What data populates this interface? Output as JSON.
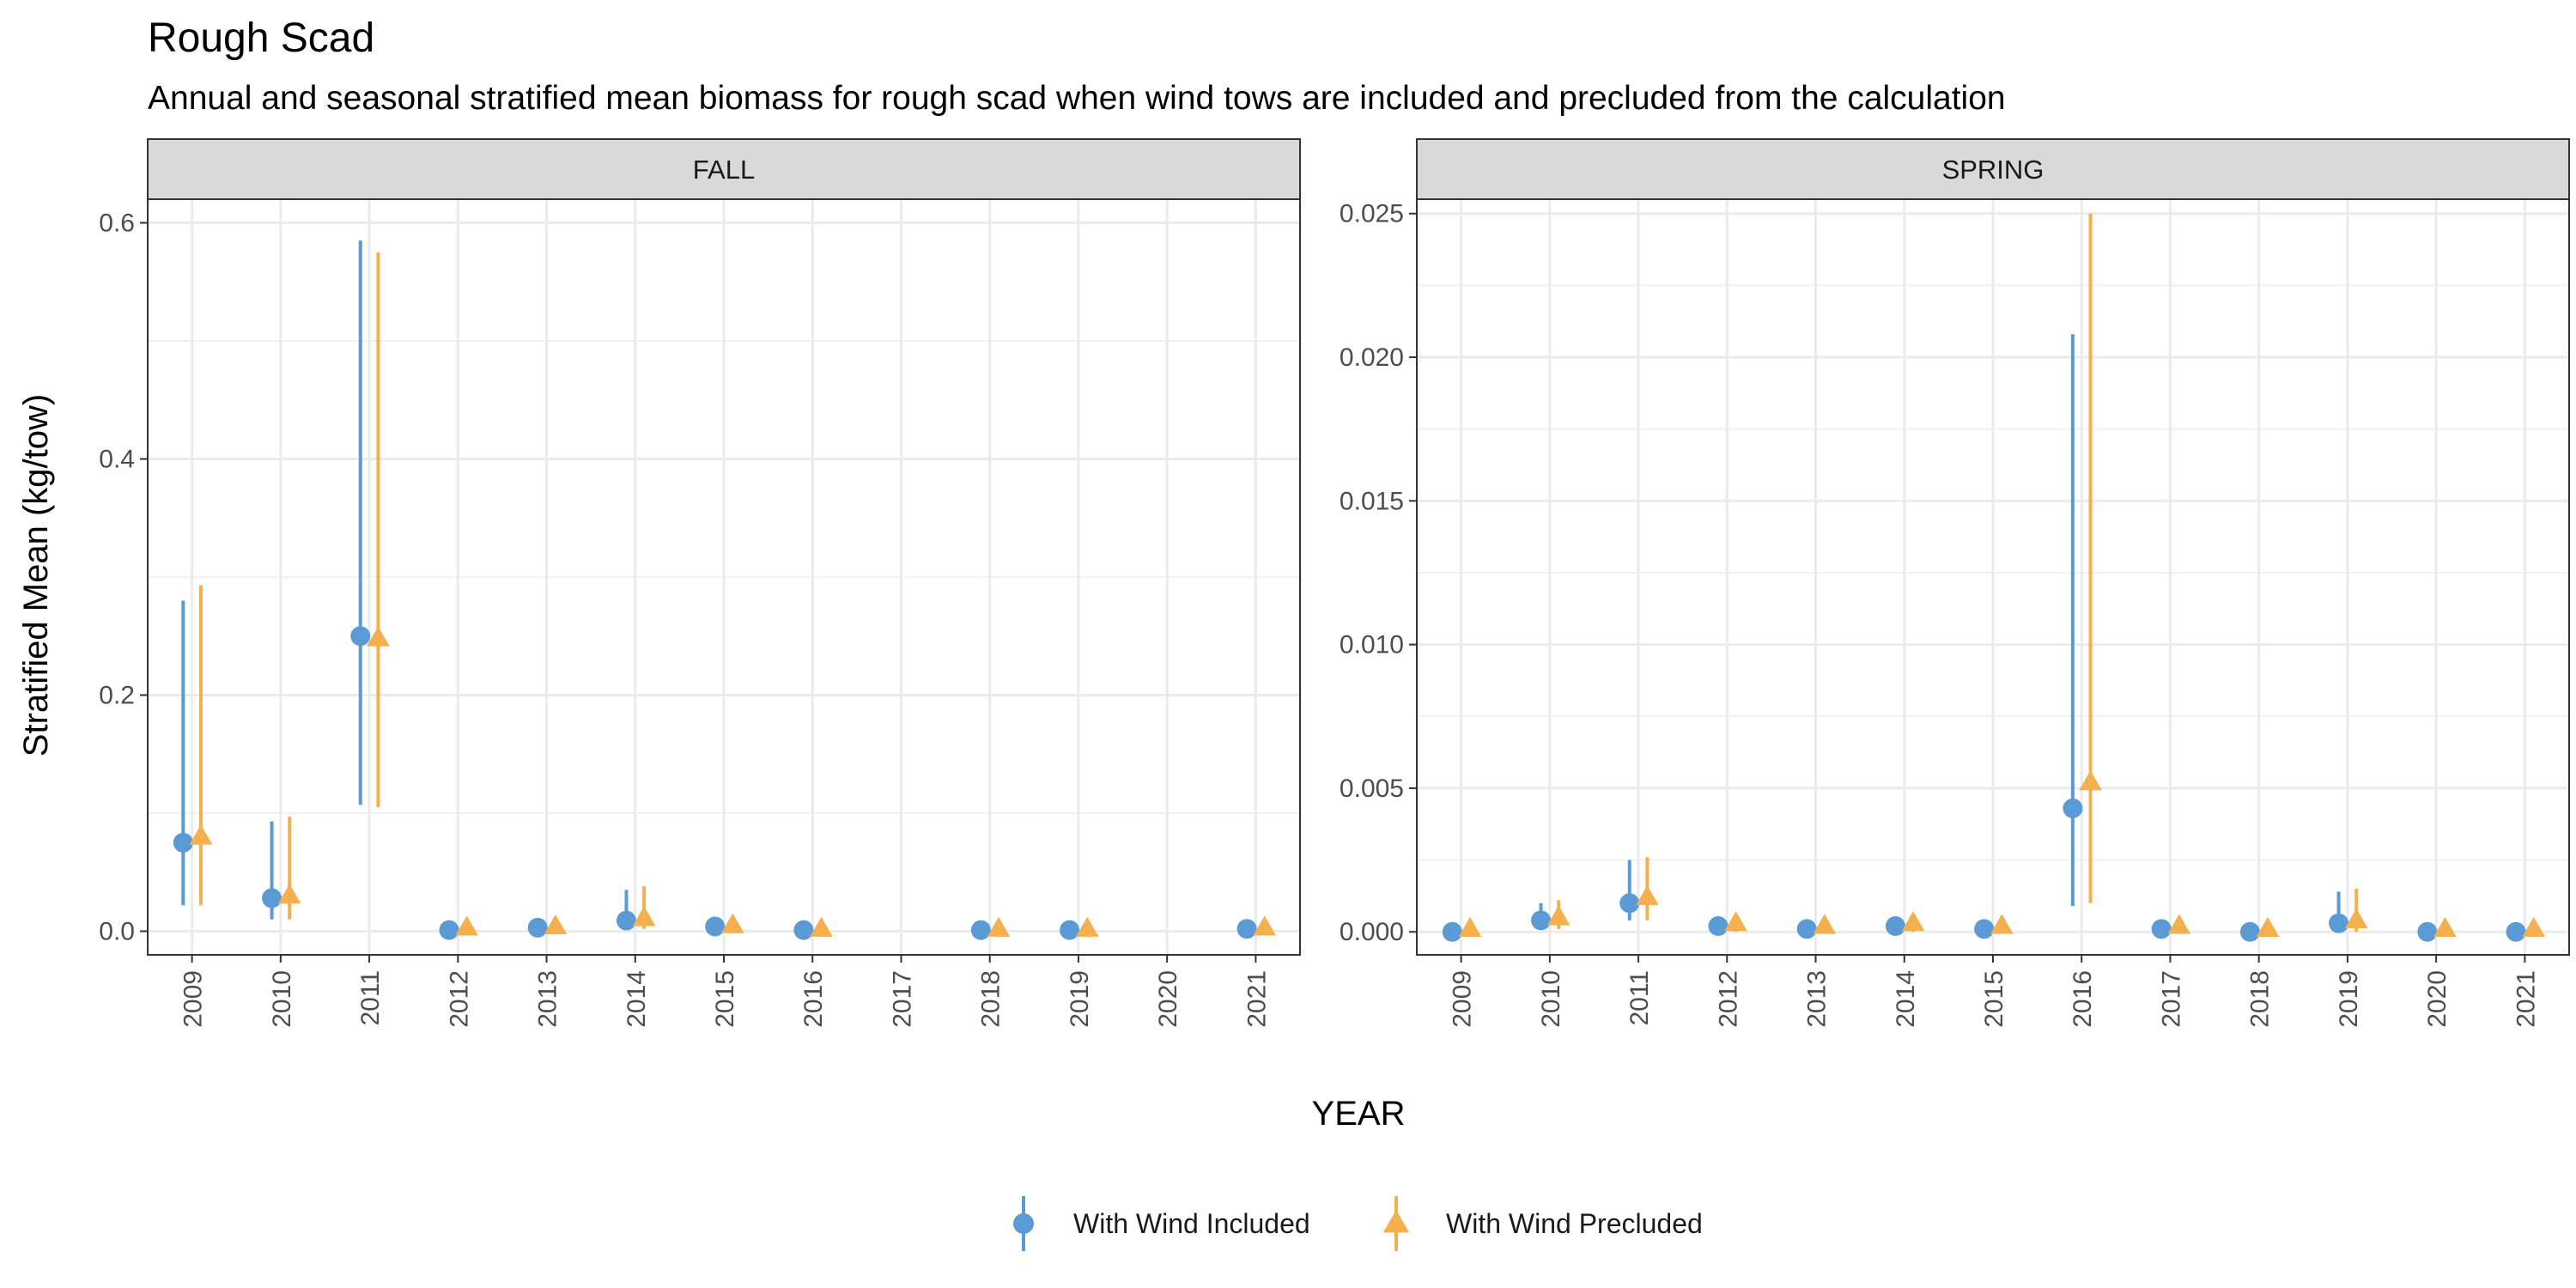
{
  "title": "Rough Scad",
  "subtitle": "Annual and seasonal stratified mean biomass for rough scad when wind tows are included and precluded from the calculation",
  "colors": {
    "included": "#5B9BD5",
    "precluded": "#F4B04F"
  },
  "chart_data": {
    "type": "scatter",
    "xlabel": "YEAR",
    "ylabel": "Stratified Mean (kg/tow)",
    "categories": [
      "2009",
      "2010",
      "2011",
      "2012",
      "2013",
      "2014",
      "2015",
      "2016",
      "2017",
      "2018",
      "2019",
      "2020",
      "2021"
    ],
    "legend_position": "bottom",
    "grid": true,
    "series_names": [
      "With Wind Included",
      "With Wind Precluded"
    ],
    "panels": [
      {
        "strip": "FALL",
        "ylim": [
          -0.02,
          0.62
        ],
        "yticks": [
          0.0,
          0.2,
          0.4,
          0.6
        ],
        "ytick_labels": [
          "0.0",
          "0.2",
          "0.4",
          "0.6"
        ],
        "series": [
          {
            "name": "With Wind Included",
            "points": [
              {
                "x": "2009",
                "y": 0.075,
                "lo": 0.022,
                "hi": 0.28
              },
              {
                "x": "2010",
                "y": 0.028,
                "lo": 0.01,
                "hi": 0.093
              },
              {
                "x": "2011",
                "y": 0.25,
                "lo": 0.107,
                "hi": 0.585
              },
              {
                "x": "2012",
                "y": 0.001,
                "lo": 0.0,
                "hi": 0.003
              },
              {
                "x": "2013",
                "y": 0.003,
                "lo": 0.001,
                "hi": 0.006
              },
              {
                "x": "2014",
                "y": 0.009,
                "lo": 0.002,
                "hi": 0.035
              },
              {
                "x": "2015",
                "y": 0.004,
                "lo": 0.001,
                "hi": 0.008
              },
              {
                "x": "2016",
                "y": 0.001,
                "lo": 0.0,
                "hi": 0.002
              },
              {
                "x": "2018",
                "y": 0.001,
                "lo": 0.0,
                "hi": 0.002
              },
              {
                "x": "2019",
                "y": 0.001,
                "lo": 0.0,
                "hi": 0.002
              },
              {
                "x": "2021",
                "y": 0.002,
                "lo": 0.0,
                "hi": 0.004
              }
            ]
          },
          {
            "name": "With Wind Precluded",
            "points": [
              {
                "x": "2009",
                "y": 0.08,
                "lo": 0.022,
                "hi": 0.293
              },
              {
                "x": "2010",
                "y": 0.03,
                "lo": 0.01,
                "hi": 0.097
              },
              {
                "x": "2011",
                "y": 0.248,
                "lo": 0.105,
                "hi": 0.575
              },
              {
                "x": "2012",
                "y": 0.003,
                "lo": 0.0,
                "hi": 0.005
              },
              {
                "x": "2013",
                "y": 0.004,
                "lo": 0.001,
                "hi": 0.007
              },
              {
                "x": "2014",
                "y": 0.011,
                "lo": 0.002,
                "hi": 0.038
              },
              {
                "x": "2015",
                "y": 0.005,
                "lo": 0.001,
                "hi": 0.009
              },
              {
                "x": "2016",
                "y": 0.002,
                "lo": 0.0,
                "hi": 0.004
              },
              {
                "x": "2018",
                "y": 0.002,
                "lo": 0.0,
                "hi": 0.004
              },
              {
                "x": "2019",
                "y": 0.002,
                "lo": 0.0,
                "hi": 0.004
              },
              {
                "x": "2021",
                "y": 0.003,
                "lo": 0.0,
                "hi": 0.005
              }
            ]
          }
        ]
      },
      {
        "strip": "SPRING",
        "ylim": [
          -0.0008,
          0.0255
        ],
        "yticks": [
          0.0,
          0.005,
          0.01,
          0.015,
          0.02,
          0.025
        ],
        "ytick_labels": [
          "0.000",
          "0.005",
          "0.010",
          "0.015",
          "0.020",
          "0.025"
        ],
        "series": [
          {
            "name": "With Wind Included",
            "points": [
              {
                "x": "2009",
                "y": 0.0,
                "lo": 0.0,
                "hi": 0.0001
              },
              {
                "x": "2010",
                "y": 0.0004,
                "lo": 0.0001,
                "hi": 0.001
              },
              {
                "x": "2011",
                "y": 0.001,
                "lo": 0.0004,
                "hi": 0.0025
              },
              {
                "x": "2012",
                "y": 0.0002,
                "lo": 0.0,
                "hi": 0.0004
              },
              {
                "x": "2013",
                "y": 0.0001,
                "lo": 0.0,
                "hi": 0.0002
              },
              {
                "x": "2014",
                "y": 0.0002,
                "lo": 0.0,
                "hi": 0.0003
              },
              {
                "x": "2015",
                "y": 0.0001,
                "lo": 0.0,
                "hi": 0.0002
              },
              {
                "x": "2016",
                "y": 0.0043,
                "lo": 0.0009,
                "hi": 0.0208
              },
              {
                "x": "2017",
                "y": 0.0001,
                "lo": 0.0,
                "hi": 0.0002
              },
              {
                "x": "2018",
                "y": 0.0,
                "lo": 0.0,
                "hi": 0.0001
              },
              {
                "x": "2019",
                "y": 0.0003,
                "lo": 0.0,
                "hi": 0.0014
              },
              {
                "x": "2020",
                "y": 0.0,
                "lo": 0.0,
                "hi": 0.0001
              },
              {
                "x": "2021",
                "y": 0.0,
                "lo": 0.0,
                "hi": 0.0001
              }
            ]
          },
          {
            "name": "With Wind Precluded",
            "points": [
              {
                "x": "2009",
                "y": 0.0001,
                "lo": 0.0,
                "hi": 0.0002
              },
              {
                "x": "2010",
                "y": 0.0005,
                "lo": 0.0001,
                "hi": 0.0011
              },
              {
                "x": "2011",
                "y": 0.0012,
                "lo": 0.0004,
                "hi": 0.0026
              },
              {
                "x": "2012",
                "y": 0.0003,
                "lo": 0.0,
                "hi": 0.0005
              },
              {
                "x": "2013",
                "y": 0.0002,
                "lo": 0.0,
                "hi": 0.0003
              },
              {
                "x": "2014",
                "y": 0.0003,
                "lo": 0.0,
                "hi": 0.0004
              },
              {
                "x": "2015",
                "y": 0.0002,
                "lo": 0.0,
                "hi": 0.0003
              },
              {
                "x": "2016",
                "y": 0.0052,
                "lo": 0.001,
                "hi": 0.025
              },
              {
                "x": "2017",
                "y": 0.0002,
                "lo": 0.0,
                "hi": 0.0003
              },
              {
                "x": "2018",
                "y": 0.0001,
                "lo": 0.0,
                "hi": 0.0002
              },
              {
                "x": "2019",
                "y": 0.0004,
                "lo": 0.0,
                "hi": 0.0015
              },
              {
                "x": "2020",
                "y": 0.0001,
                "lo": 0.0,
                "hi": 0.0002
              },
              {
                "x": "2021",
                "y": 0.0001,
                "lo": 0.0,
                "hi": 0.0002
              }
            ]
          }
        ]
      }
    ]
  }
}
